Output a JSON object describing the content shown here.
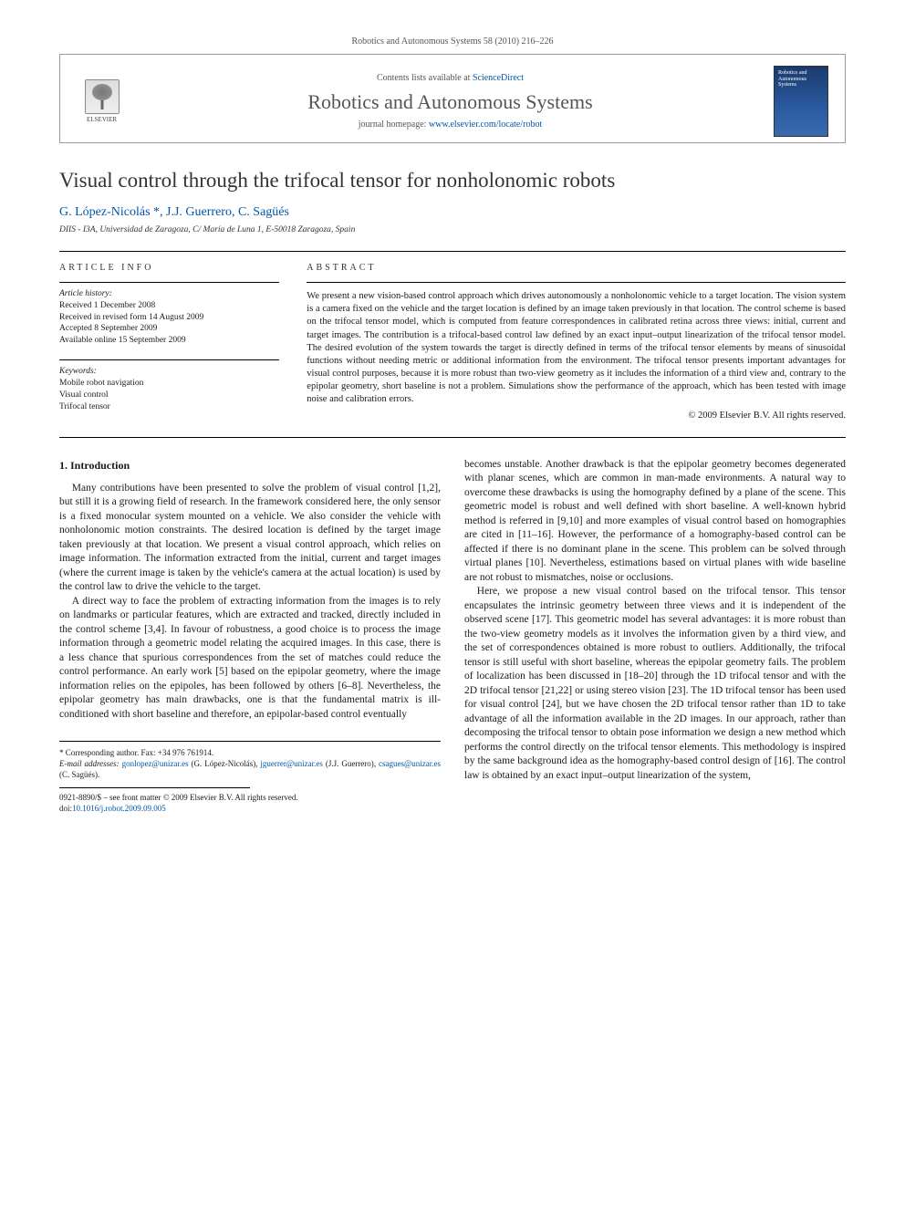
{
  "citation": "Robotics and Autonomous Systems 58 (2010) 216–226",
  "header": {
    "contents_prefix": "Contents lists available at ",
    "contents_link": "ScienceDirect",
    "journal_name": "Robotics and Autonomous Systems",
    "homepage_prefix": "journal homepage: ",
    "homepage_link": "www.elsevier.com/locate/robot",
    "publisher_label": "ELSEVIER",
    "cover_title": "Robotics and Autonomous Systems"
  },
  "article": {
    "title": "Visual control through the trifocal tensor for nonholonomic robots",
    "authors_html": "G. López-Nicolás *, J.J. Guerrero, C. Sagüés",
    "affiliation": "DIIS - I3A, Universidad de Zaragoza, C/ María de Luna 1, E-50018 Zaragoza, Spain"
  },
  "info": {
    "label": "ARTICLE INFO",
    "history_label": "Article history:",
    "received": "Received 1 December 2008",
    "revised": "Received in revised form 14 August 2009",
    "accepted": "Accepted 8 September 2009",
    "online": "Available online 15 September 2009",
    "keywords_label": "Keywords:",
    "keywords": [
      "Mobile robot navigation",
      "Visual control",
      "Trifocal tensor"
    ]
  },
  "abstract": {
    "label": "ABSTRACT",
    "text": "We present a new vision-based control approach which drives autonomously a nonholonomic vehicle to a target location. The vision system is a camera fixed on the vehicle and the target location is defined by an image taken previously in that location. The control scheme is based on the trifocal tensor model, which is computed from feature correspondences in calibrated retina across three views: initial, current and target images. The contribution is a trifocal-based control law defined by an exact input–output linearization of the trifocal tensor model. The desired evolution of the system towards the target is directly defined in terms of the trifocal tensor elements by means of sinusoidal functions without needing metric or additional information from the environment. The trifocal tensor presents important advantages for visual control purposes, because it is more robust than two-view geometry as it includes the information of a third view and, contrary to the epipolar geometry, short baseline is not a problem. Simulations show the performance of the approach, which has been tested with image noise and calibration errors.",
    "copyright": "© 2009 Elsevier B.V. All rights reserved."
  },
  "body": {
    "section1_title": "1. Introduction",
    "col1_p1": "Many contributions have been presented to solve the problem of visual control [1,2], but still it is a growing field of research. In the framework considered here, the only sensor is a fixed monocular system mounted on a vehicle. We also consider the vehicle with nonholonomic motion constraints. The desired location is defined by the target image taken previously at that location. We present a visual control approach, which relies on image information. The information extracted from the initial, current and target images (where the current image is taken by the vehicle's camera at the actual location) is used by the control law to drive the vehicle to the target.",
    "col1_p2": "A direct way to face the problem of extracting information from the images is to rely on landmarks or particular features, which are extracted and tracked, directly included in the control scheme [3,4]. In favour of robustness, a good choice is to process the image information through a geometric model relating the acquired images. In this case, there is a less chance that spurious correspondences from the set of matches could reduce the control performance. An early work [5] based on the epipolar geometry, where the image information relies on the epipoles, has been followed by others [6–8]. Nevertheless, the epipolar geometry has main drawbacks, one is that the fundamental matrix is ill-conditioned with short baseline and therefore, an epipolar-based control eventually",
    "col2_p1": "becomes unstable. Another drawback is that the epipolar geometry becomes degenerated with planar scenes, which are common in man-made environments. A natural way to overcome these drawbacks is using the homography defined by a plane of the scene. This geometric model is robust and well defined with short baseline. A well-known hybrid method is referred in [9,10] and more examples of visual control based on homographies are cited in [11–16]. However, the performance of a homography-based control can be affected if there is no dominant plane in the scene. This problem can be solved through virtual planes [10]. Nevertheless, estimations based on virtual planes with wide baseline are not robust to mismatches, noise or occlusions.",
    "col2_p2": "Here, we propose a new visual control based on the trifocal tensor. This tensor encapsulates the intrinsic geometry between three views and it is independent of the observed scene [17]. This geometric model has several advantages: it is more robust than the two-view geometry models as it involves the information given by a third view, and the set of correspondences obtained is more robust to outliers. Additionally, the trifocal tensor is still useful with short baseline, whereas the epipolar geometry fails. The problem of localization has been discussed in [18–20] through the 1D trifocal tensor and with the 2D trifocal tensor [21,22] or using stereo vision [23]. The 1D trifocal tensor has been used for visual control [24], but we have chosen the 2D trifocal tensor rather than 1D to take advantage of all the information available in the 2D images. In our approach, rather than decomposing the trifocal tensor to obtain pose information we design a new method which performs the control directly on the trifocal tensor elements. This methodology is inspired by the same background idea as the homography-based control design of [16]. The control law is obtained by an exact input–output linearization of the system,"
  },
  "footer": {
    "corresponding": "* Corresponding author. Fax: +34 976 761914.",
    "email_label": "E-mail addresses:",
    "emails": [
      {
        "addr": "gonlopez@unizar.es",
        "who": "(G. López-Nicolás)"
      },
      {
        "addr": "jguerrer@unizar.es",
        "who": "(J.J. Guerrero)"
      },
      {
        "addr": "csagues@unizar.es",
        "who": "(C. Sagüés)"
      }
    ],
    "issn_line": "0921-8890/$ – see front matter © 2009 Elsevier B.V. All rights reserved.",
    "doi_label": "doi:",
    "doi": "10.1016/j.robot.2009.09.005"
  },
  "colors": {
    "link": "#0056a8",
    "text": "#1a1a1a",
    "header_gray": "#555555",
    "border": "#999999",
    "cover_bg_top": "#1a3a6e",
    "cover_bg_bottom": "#3a6ab0"
  },
  "typography": {
    "body_fontsize_pt": 9,
    "title_fontsize_pt": 17,
    "journal_name_fontsize_pt": 16,
    "font_family": "Georgia / serif"
  }
}
